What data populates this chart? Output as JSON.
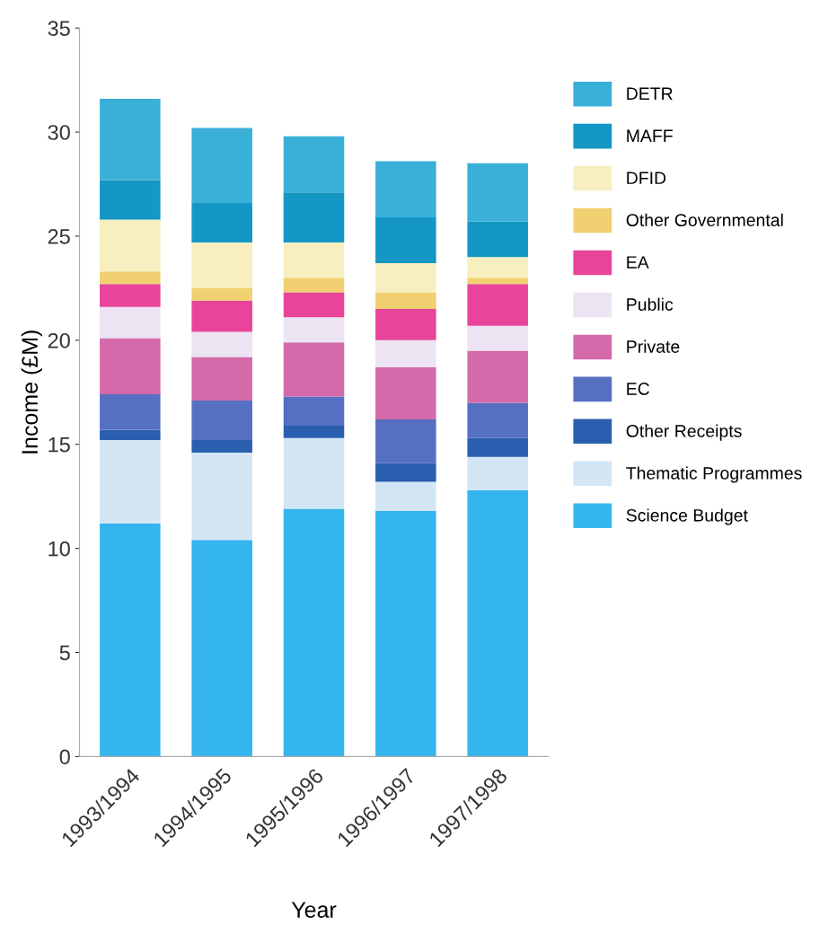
{
  "chart_data": {
    "type": "bar",
    "stacked": true,
    "xlabel": "Year",
    "ylabel": "Income (£M)",
    "categories": [
      "1993/1994",
      "1994/1995",
      "1995/1996",
      "1996/1997",
      "1997/1998"
    ],
    "series": [
      {
        "name": "Science Budget",
        "color": "#35b5ee",
        "values": [
          11.2,
          10.4,
          11.9,
          11.8,
          12.8
        ]
      },
      {
        "name": "Thematic Programmes",
        "color": "#d2e6f6",
        "values": [
          4.0,
          4.2,
          3.4,
          1.4,
          1.6
        ]
      },
      {
        "name": "Other Receipts",
        "color": "#2a5fb0",
        "values": [
          0.5,
          0.6,
          0.6,
          0.9,
          0.9
        ]
      },
      {
        "name": "EC",
        "color": "#5570c0",
        "values": [
          1.7,
          1.9,
          1.4,
          2.1,
          1.7
        ]
      },
      {
        "name": "Private",
        "color": "#d46aaa",
        "values": [
          2.7,
          2.1,
          2.6,
          2.5,
          2.5
        ]
      },
      {
        "name": "Public",
        "color": "#ece4f2",
        "values": [
          1.5,
          1.2,
          1.2,
          1.3,
          1.2
        ]
      },
      {
        "name": "EA",
        "color": "#e8449a",
        "values": [
          1.1,
          1.5,
          1.2,
          1.5,
          2.0
        ]
      },
      {
        "name": "Other Governmental",
        "color": "#f0d070",
        "values": [
          0.6,
          0.6,
          0.7,
          0.8,
          0.3
        ]
      },
      {
        "name": "DFID",
        "color": "#f7efc0",
        "values": [
          2.5,
          2.2,
          1.7,
          1.4,
          1.0
        ]
      },
      {
        "name": "MAFF",
        "color": "#1497c4",
        "values": [
          1.9,
          1.9,
          2.4,
          2.2,
          1.7
        ]
      },
      {
        "name": "DETR",
        "color": "#3ab0d8",
        "values": [
          3.9,
          3.6,
          2.7,
          2.7,
          2.8
        ]
      }
    ],
    "ylim": [
      0,
      35
    ],
    "yticks": [
      0,
      5,
      10,
      15,
      20,
      25,
      30,
      35
    ],
    "grid": false,
    "legend": "right"
  }
}
